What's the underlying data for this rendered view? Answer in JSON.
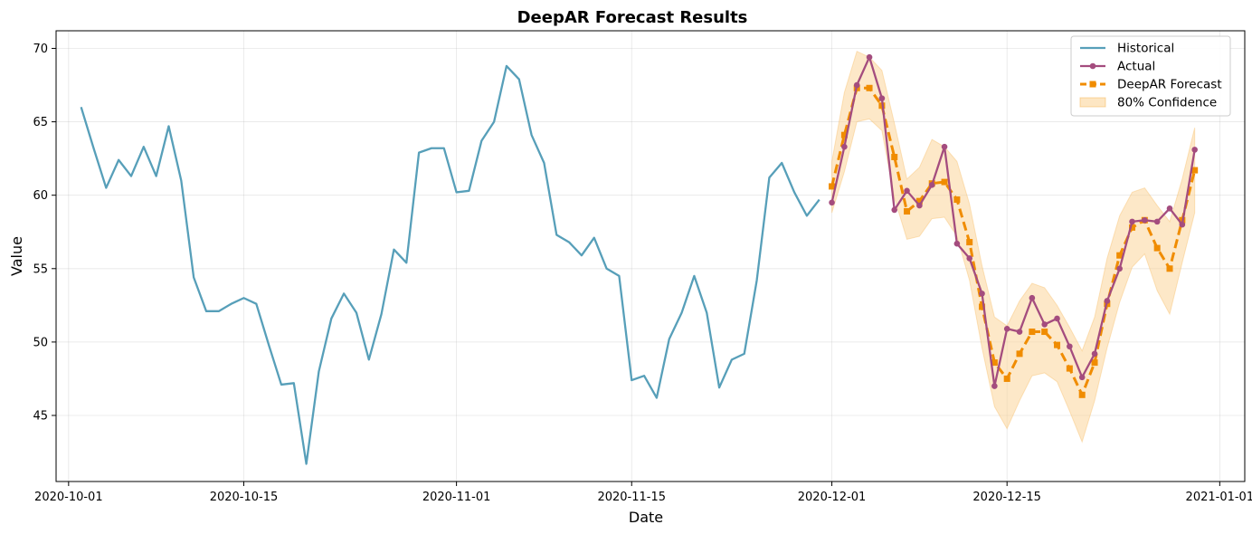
{
  "chart_data": {
    "type": "line",
    "title": "DeepAR Forecast Results",
    "xlabel": "Date",
    "ylabel": "Value",
    "xlim": [
      "2020-09-30",
      "2021-01-03"
    ],
    "ylim": [
      40.5,
      71.2
    ],
    "x_ticks": [
      "2020-10-01",
      "2020-10-15",
      "2020-11-01",
      "2020-11-15",
      "2020-12-01",
      "2020-12-15",
      "2021-01-01"
    ],
    "y_ticks": [
      45,
      50,
      55,
      60,
      65,
      70
    ],
    "grid": true,
    "legend_position": "top-right",
    "series": [
      {
        "name": "Historical",
        "color": "#579fb9",
        "style": "solid",
        "start_date": "2020-10-02",
        "values": [
          66.0,
          63.2,
          60.5,
          62.4,
          61.3,
          63.3,
          61.3,
          64.7,
          61.0,
          54.4,
          52.1,
          52.1,
          52.6,
          53.0,
          52.6,
          49.8,
          47.1,
          47.2,
          41.7,
          48.0,
          51.6,
          53.3,
          52.0,
          48.8,
          51.9,
          56.3,
          55.4,
          62.9,
          63.2,
          63.2,
          60.2,
          60.3,
          63.7,
          65.0,
          68.8,
          67.9,
          64.1,
          62.2,
          57.3,
          56.8,
          55.9,
          57.1,
          55.0,
          54.5,
          47.4,
          47.7,
          46.2,
          50.2,
          52.0,
          54.5,
          52.0,
          46.9,
          48.8,
          49.2,
          54.2,
          61.2,
          62.2,
          60.2,
          58.6,
          59.7
        ]
      },
      {
        "name": "Actual",
        "color": "#a44c7e",
        "style": "solid-markers",
        "start_date": "2020-12-01",
        "values": [
          59.5,
          63.3,
          67.5,
          69.4,
          66.6,
          59.0,
          60.3,
          59.3,
          60.7,
          63.3,
          56.7,
          55.7,
          53.3,
          47.0,
          50.9,
          50.7,
          53.0,
          51.2,
          51.6,
          49.7,
          47.6,
          49.2,
          52.8,
          55.0,
          58.2,
          58.3,
          58.2,
          59.1,
          58.0,
          63.1
        ]
      },
      {
        "name": "DeepAR Forecast",
        "color": "#f08c00",
        "style": "dashed-markers",
        "start_date": "2020-12-01",
        "values": [
          60.6,
          64.1,
          67.3,
          67.3,
          66.1,
          62.6,
          58.9,
          59.6,
          60.8,
          60.9,
          59.7,
          56.8,
          52.4,
          48.6,
          47.5,
          49.2,
          50.7,
          50.7,
          49.8,
          48.2,
          46.4,
          48.6,
          52.6,
          55.9,
          57.8,
          58.3,
          56.4,
          55.0,
          58.3,
          61.7
        ]
      }
    ],
    "confidence_band": {
      "name": "80% Confidence",
      "color": "#fbd59b",
      "start_date": "2020-12-01",
      "lower": [
        58.8,
        61.6,
        65.0,
        65.2,
        64.4,
        59.8,
        57.0,
        57.2,
        58.4,
        58.5,
        57.2,
        54.2,
        49.6,
        45.6,
        44.1,
        46.0,
        47.7,
        47.9,
        47.3,
        45.3,
        43.2,
        46.0,
        49.6,
        52.7,
        55.1,
        56.0,
        53.5,
        51.9,
        55.4,
        58.8
      ],
      "upper": [
        62.3,
        67.0,
        69.8,
        69.4,
        68.5,
        64.9,
        61.1,
        61.9,
        63.8,
        63.3,
        62.3,
        59.4,
        55.2,
        51.7,
        51.1,
        52.8,
        54.0,
        53.7,
        52.5,
        51.0,
        49.4,
        51.7,
        55.7,
        58.6,
        60.2,
        60.5,
        59.3,
        58.2,
        61.1,
        64.6
      ]
    }
  }
}
